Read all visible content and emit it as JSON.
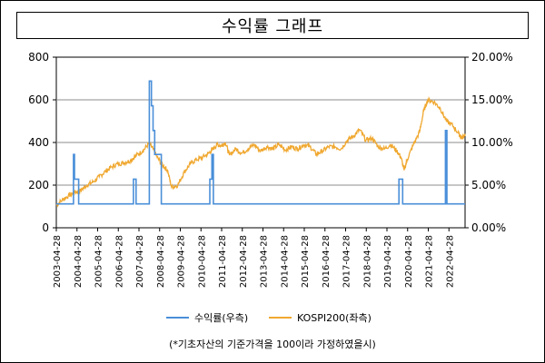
{
  "title": "수익률 그래프",
  "note": "(*기초자산의 기준가격을 100이라 가정하였을시)",
  "chart_data": {
    "type": "line",
    "title": "수익률 그래프",
    "left_axis": {
      "min": 0,
      "max": 800,
      "ticks": [
        0,
        200,
        400,
        600,
        800
      ],
      "labels": [
        "0",
        "200",
        "400",
        "600",
        "800"
      ]
    },
    "right_axis": {
      "min": 0,
      "max": 20,
      "ticks": [
        0,
        5,
        10,
        15,
        20
      ],
      "labels": [
        "0.00%",
        "5.00%",
        "10.00%",
        "15.00%",
        "20.00%"
      ]
    },
    "x_range": [
      2003.32,
      2023.1
    ],
    "x_tick_labels": [
      "2003-04-28",
      "2004-04-28",
      "2005-04-28",
      "2006-04-28",
      "2007-04-28",
      "2008-04-28",
      "2009-04-28",
      "2010-04-28",
      "2011-04-28",
      "2012-04-28",
      "2013-04-28",
      "2014-04-28",
      "2015-04-28",
      "2016-04-28",
      "2017-04-28",
      "2018-04-28",
      "2019-04-28",
      "2020-04-28",
      "2021-04-28",
      "2022-04-28"
    ],
    "grid": true,
    "legend_position": "bottom",
    "colors": {
      "return": "#4a8fd9",
      "kospi": "#f0a830"
    },
    "series": [
      {
        "name": "수익률(우측)",
        "axis": "right",
        "baseline": 2.8,
        "spikes": [
          {
            "start": 2004.15,
            "end": 2004.2,
            "value": 8.6
          },
          {
            "start": 2004.2,
            "end": 2004.4,
            "value": 5.7
          },
          {
            "start": 2007.05,
            "end": 2007.18,
            "value": 5.7
          },
          {
            "start": 2007.82,
            "end": 2007.92,
            "value": 17.2
          },
          {
            "start": 2007.92,
            "end": 2008.0,
            "value": 14.3
          },
          {
            "start": 2008.0,
            "end": 2008.08,
            "value": 11.4
          },
          {
            "start": 2008.08,
            "end": 2008.4,
            "value": 8.6
          },
          {
            "start": 2010.75,
            "end": 2010.85,
            "value": 5.7
          },
          {
            "start": 2010.85,
            "end": 2010.92,
            "value": 8.6
          },
          {
            "start": 2019.9,
            "end": 2020.08,
            "value": 5.7
          },
          {
            "start": 2022.15,
            "end": 2022.22,
            "value": 11.4
          }
        ]
      },
      {
        "name": "KOSPI200(좌측)",
        "axis": "left",
        "x": [
          2003.32,
          2003.6,
          2003.9,
          2004.2,
          2004.5,
          2004.8,
          2005.1,
          2005.4,
          2005.7,
          2006.0,
          2006.3,
          2006.6,
          2006.9,
          2007.2,
          2007.5,
          2007.8,
          2008.0,
          2008.2,
          2008.5,
          2008.7,
          2008.9,
          2009.2,
          2009.5,
          2009.8,
          2010.1,
          2010.4,
          2010.7,
          2010.9,
          2011.1,
          2011.3,
          2011.5,
          2011.7,
          2012.0,
          2012.3,
          2012.6,
          2012.9,
          2013.2,
          2013.5,
          2013.8,
          2014.1,
          2014.4,
          2014.7,
          2015.0,
          2015.3,
          2015.6,
          2015.9,
          2016.2,
          2016.5,
          2016.8,
          2017.1,
          2017.4,
          2017.7,
          2018.0,
          2018.3,
          2018.6,
          2018.9,
          2019.2,
          2019.5,
          2019.8,
          2020.0,
          2020.15,
          2020.3,
          2020.6,
          2020.9,
          2021.1,
          2021.3,
          2021.6,
          2021.9,
          2022.2,
          2022.5,
          2022.8,
          2022.95,
          2023.1
        ],
        "y": [
          105,
          130,
          150,
          165,
          175,
          200,
          215,
          240,
          265,
          285,
          300,
          305,
          315,
          340,
          360,
          395,
          370,
          330,
          290,
          270,
          190,
          200,
          260,
          300,
          320,
          330,
          350,
          370,
          390,
          385,
          400,
          340,
          370,
          350,
          370,
          390,
          360,
          380,
          370,
          390,
          365,
          380,
          370,
          390,
          380,
          345,
          360,
          380,
          380,
          370,
          410,
          430,
          460,
          410,
          420,
          380,
          370,
          390,
          360,
          330,
          270,
          320,
          390,
          450,
          550,
          600,
          590,
          560,
          500,
          480,
          440,
          420,
          440
        ]
      }
    ]
  }
}
